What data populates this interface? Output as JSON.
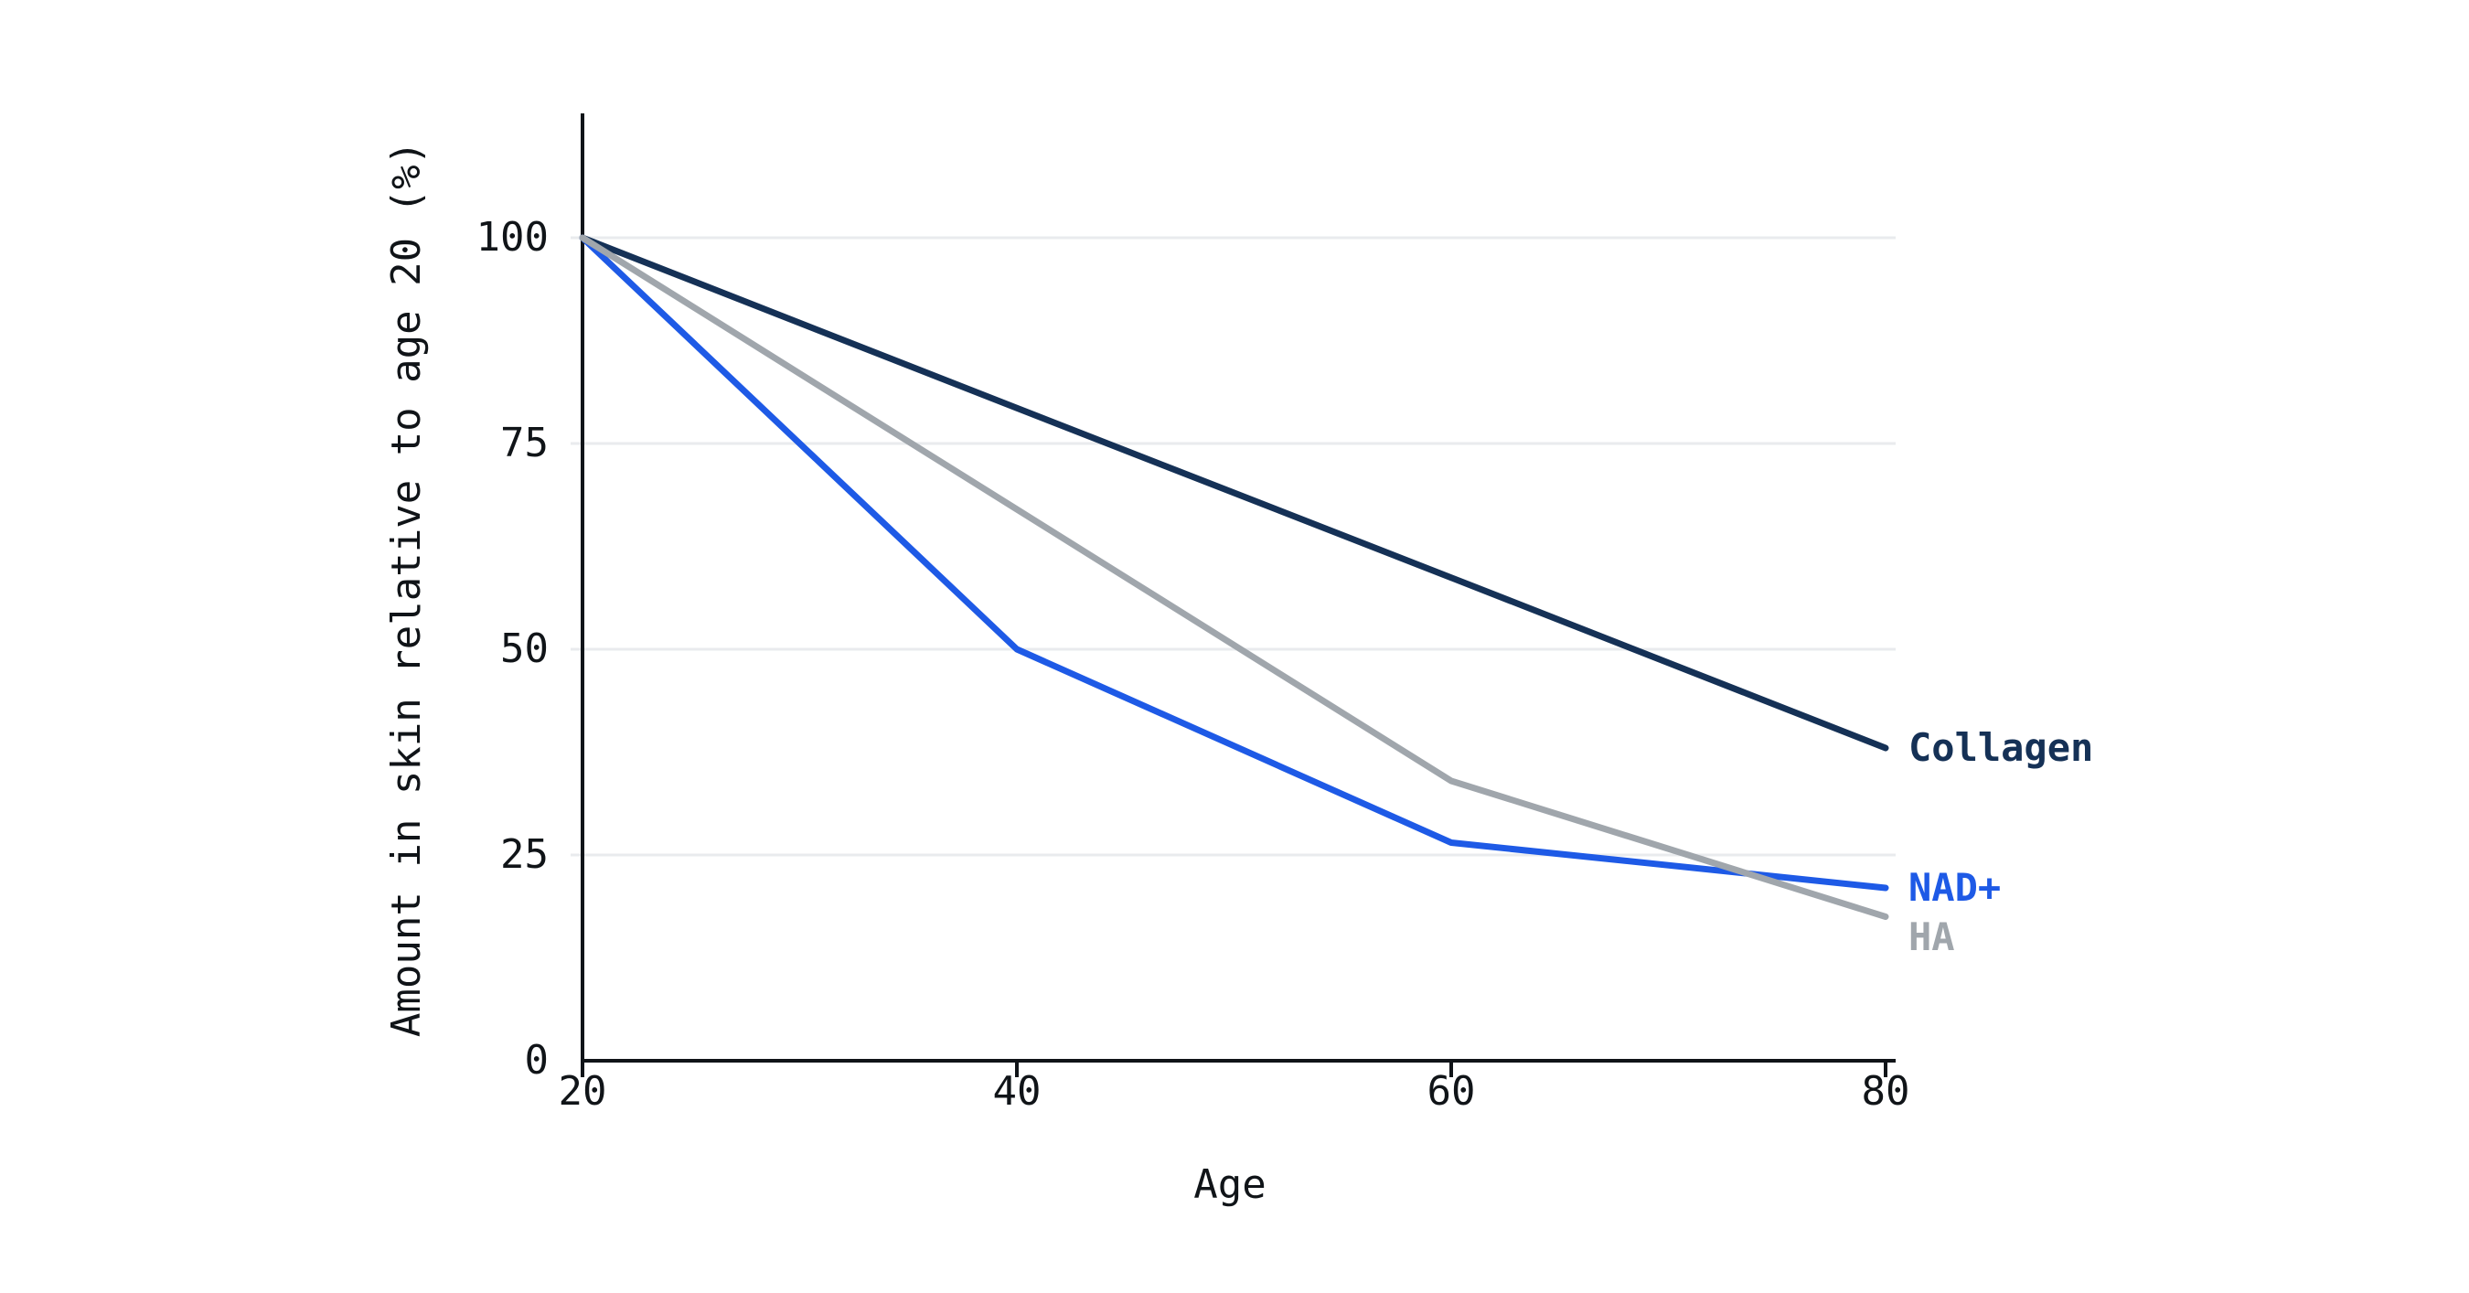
{
  "colors": {
    "background": "#ffffff",
    "axis": "#101418",
    "grid": "#e9ebee",
    "tick_text": "#101418"
  },
  "chart_data": {
    "type": "line",
    "title": "",
    "xlabel": "Age",
    "ylabel": "Amount in skin relative to age 20 (%)",
    "x": [
      20,
      40,
      60,
      80
    ],
    "y_ticks": [
      0,
      25,
      50,
      75,
      100
    ],
    "xlim": [
      20,
      80
    ],
    "ylim": [
      0,
      100
    ],
    "grid": "horizontal",
    "legend_position": "right of line ends",
    "series": [
      {
        "name": "Collagen",
        "color": "#153156",
        "values": [
          100,
          79.3,
          58.7,
          38
        ]
      },
      {
        "name": "NAD+",
        "color": "#1e5ae6",
        "values": [
          100,
          50,
          26.5,
          21
        ]
      },
      {
        "name": "HA",
        "color": "#a0a6ac",
        "values": [
          100,
          67,
          34,
          17.5
        ]
      }
    ]
  }
}
